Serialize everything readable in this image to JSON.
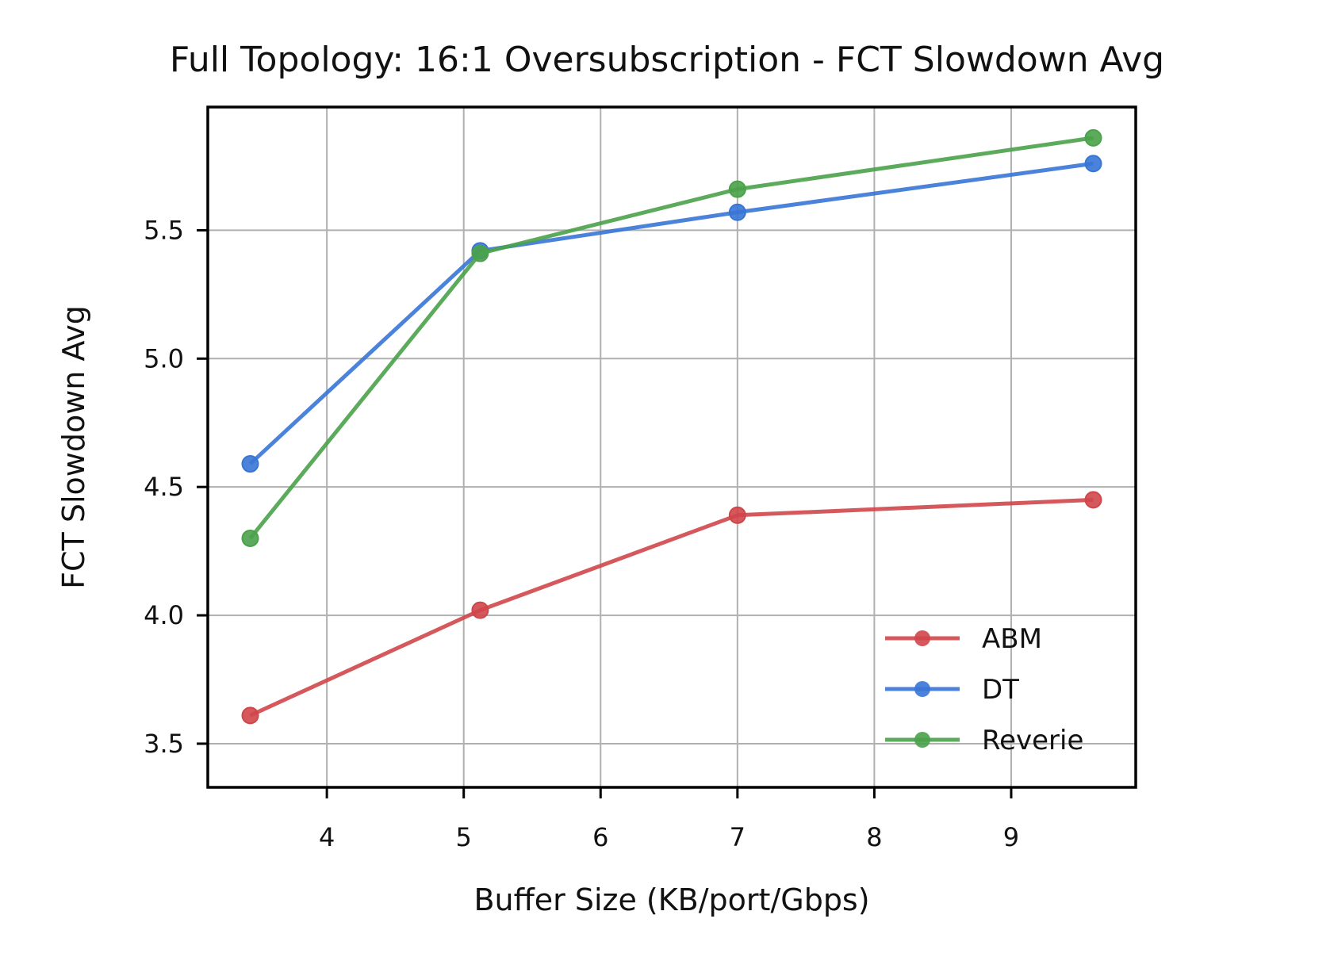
{
  "chart_data": {
    "type": "line",
    "title": "Full Topology: 16:1 Oversubscription - FCT Slowdown Avg",
    "xlabel": "Buffer Size (KB/port/Gbps)",
    "ylabel": "FCT Slowdown Avg",
    "xlim": [
      3.13,
      9.91
    ],
    "ylim": [
      3.33,
      5.98
    ],
    "xticks": [
      4,
      5,
      6,
      7,
      8,
      9
    ],
    "yticks": [
      3.5,
      4.0,
      4.5,
      5.0,
      5.5
    ],
    "xtick_labels": [
      "4",
      "5",
      "6",
      "7",
      "8",
      "9"
    ],
    "ytick_labels": [
      "3.5",
      "4.0",
      "4.5",
      "5.0",
      "5.5"
    ],
    "grid": true,
    "legend_position": "lower-right",
    "series": [
      {
        "name": "ABM",
        "color": "#d0464a",
        "x": [
          3.44,
          5.12,
          7.0,
          9.6
        ],
        "y": [
          3.61,
          4.02,
          4.39,
          4.45
        ]
      },
      {
        "name": "DT",
        "color": "#3876d6",
        "x": [
          3.44,
          5.12,
          7.0,
          9.6
        ],
        "y": [
          4.59,
          5.42,
          5.57,
          5.76
        ]
      },
      {
        "name": "Reverie",
        "color": "#4aa24a",
        "x": [
          3.44,
          5.12,
          7.0,
          9.6
        ],
        "y": [
          4.3,
          5.41,
          5.66,
          5.86
        ]
      }
    ]
  }
}
